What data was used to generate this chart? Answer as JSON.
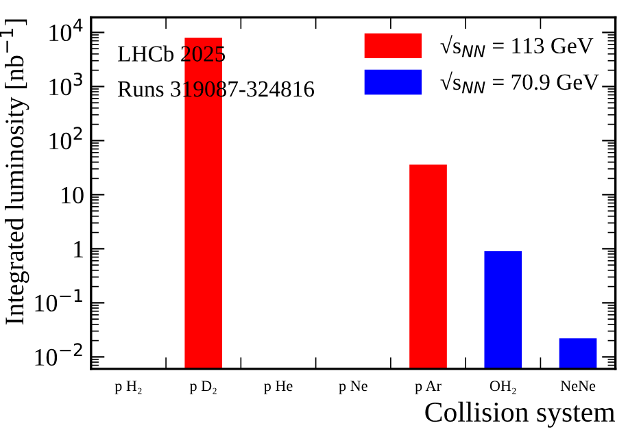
{
  "chart_data": {
    "type": "bar",
    "xlabel": "Collision system",
    "ylabel": "Integrated luminosity [nb$^{−1}$]",
    "categories": [
      "p H₂",
      "p D₂",
      "p He",
      "p Ne",
      "p Ar",
      "OH₂",
      "NeNe"
    ],
    "series": [
      {
        "name": "√s$_{NN}$ = 113 GeV",
        "color": "#ff0000",
        "values": [
          null,
          8000,
          null,
          null,
          36,
          null,
          null
        ]
      },
      {
        "name": "√s$_{NN}$ = 70.9 GeV",
        "color": "#0000ff",
        "values": [
          null,
          null,
          null,
          null,
          null,
          0.9,
          0.022
        ]
      }
    ],
    "log": true,
    "ylim": [
      0.006,
      19000
    ],
    "yticks": [
      {
        "value": 0.01,
        "label": "10$^{−2}$"
      },
      {
        "value": 0.1,
        "label": "10$^{−1}$"
      },
      1,
      10,
      {
        "value": 100,
        "label": "10$^{2}$"
      },
      {
        "value": 1000,
        "label": "10$^{3}$"
      },
      {
        "value": 10000,
        "label": "10$^{4}$"
      }
    ],
    "annotations": [
      "LHCb 2025",
      "Runs 319087-324816"
    ],
    "legend": "top right",
    "grid": false
  }
}
